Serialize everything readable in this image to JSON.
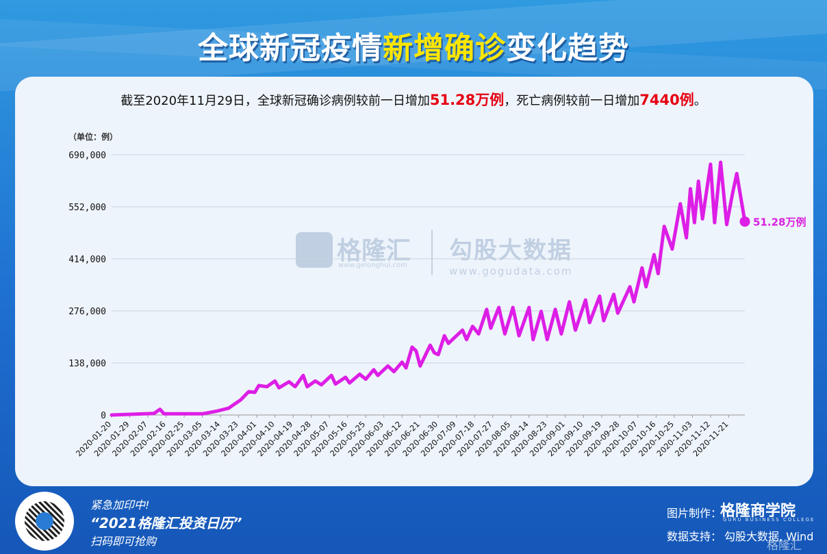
{
  "header": {
    "title_part1": "全球新冠疫情",
    "title_highlight": "新增确诊",
    "title_part2": "变化趋势"
  },
  "summary": {
    "prefix": "截至2020年11月29日，全球新冠确诊病例较前一日增加",
    "new_cases": "51.28万例",
    "middle": "，死亡病例较前一日增加",
    "new_deaths": "7440例",
    "suffix": "。"
  },
  "chart_data": {
    "type": "line",
    "unit_label": "（单位：例）",
    "ylim": [
      0,
      690000
    ],
    "yticks": [
      0,
      138000,
      276000,
      414000,
      552000,
      690000
    ],
    "ytick_labels": [
      "0",
      "138,000",
      "276,000",
      "414,000",
      "552,000",
      "690,000"
    ],
    "xtick_labels": [
      "2020-01-20",
      "2020-01-29",
      "2020-02-07",
      "2020-02-16",
      "2020-02-25",
      "2020-03-05",
      "2020-03-14",
      "2020-03-23",
      "2020-04-01",
      "2020-04-10",
      "2020-04-19",
      "2020-04-28",
      "2020-05-07",
      "2020-05-16",
      "2020-05-25",
      "2020-06-03",
      "2020-06-12",
      "2020-06-21",
      "2020-06-30",
      "2020-07-09",
      "2020-07-18",
      "2020-07-27",
      "2020-08-05",
      "2020-08-14",
      "2020-08-23",
      "2020-09-01",
      "2020-09-10",
      "2020-09-19",
      "2020-09-28",
      "2020-10-07",
      "2020-10-16",
      "2020-10-25",
      "2020-11-03",
      "2020-11-12",
      "2020-11-21"
    ],
    "x_start": "2020-01-20",
    "x_end": "2020-11-29",
    "series_color": "#dd1ee6",
    "end_label": "51.28万例",
    "end_value": 512800,
    "points": [
      [
        "2020-01-20",
        0
      ],
      [
        "2020-02-10",
        4000
      ],
      [
        "2020-02-13",
        15000
      ],
      [
        "2020-02-15",
        3000
      ],
      [
        "2020-03-05",
        3000
      ],
      [
        "2020-03-12",
        10000
      ],
      [
        "2020-03-18",
        18000
      ],
      [
        "2020-03-24",
        40000
      ],
      [
        "2020-03-28",
        62000
      ],
      [
        "2020-03-31",
        60000
      ],
      [
        "2020-04-02",
        78000
      ],
      [
        "2020-04-06",
        75000
      ],
      [
        "2020-04-10",
        90000
      ],
      [
        "2020-04-12",
        72000
      ],
      [
        "2020-04-17",
        88000
      ],
      [
        "2020-04-20",
        75000
      ],
      [
        "2020-04-24",
        105000
      ],
      [
        "2020-04-26",
        75000
      ],
      [
        "2020-04-30",
        90000
      ],
      [
        "2020-05-03",
        80000
      ],
      [
        "2020-05-08",
        105000
      ],
      [
        "2020-05-10",
        82000
      ],
      [
        "2020-05-15",
        100000
      ],
      [
        "2020-05-17",
        85000
      ],
      [
        "2020-05-22",
        108000
      ],
      [
        "2020-05-25",
        95000
      ],
      [
        "2020-05-29",
        120000
      ],
      [
        "2020-05-31",
        105000
      ],
      [
        "2020-06-05",
        130000
      ],
      [
        "2020-06-08",
        115000
      ],
      [
        "2020-06-12",
        140000
      ],
      [
        "2020-06-14",
        125000
      ],
      [
        "2020-06-17",
        180000
      ],
      [
        "2020-06-19",
        170000
      ],
      [
        "2020-06-21",
        130000
      ],
      [
        "2020-06-26",
        185000
      ],
      [
        "2020-06-28",
        165000
      ],
      [
        "2020-06-30",
        160000
      ],
      [
        "2020-07-03",
        210000
      ],
      [
        "2020-07-05",
        190000
      ],
      [
        "2020-07-08",
        205000
      ],
      [
        "2020-07-12",
        225000
      ],
      [
        "2020-07-14",
        200000
      ],
      [
        "2020-07-17",
        235000
      ],
      [
        "2020-07-20",
        215000
      ],
      [
        "2020-07-24",
        280000
      ],
      [
        "2020-07-26",
        230000
      ],
      [
        "2020-07-30",
        285000
      ],
      [
        "2020-08-02",
        215000
      ],
      [
        "2020-08-06",
        285000
      ],
      [
        "2020-08-09",
        210000
      ],
      [
        "2020-08-14",
        285000
      ],
      [
        "2020-08-16",
        200000
      ],
      [
        "2020-08-20",
        275000
      ],
      [
        "2020-08-23",
        200000
      ],
      [
        "2020-08-27",
        280000
      ],
      [
        "2020-08-30",
        215000
      ],
      [
        "2020-09-03",
        300000
      ],
      [
        "2020-09-06",
        225000
      ],
      [
        "2020-09-11",
        305000
      ],
      [
        "2020-09-13",
        245000
      ],
      [
        "2020-09-18",
        315000
      ],
      [
        "2020-09-20",
        250000
      ],
      [
        "2020-09-25",
        320000
      ],
      [
        "2020-09-27",
        270000
      ],
      [
        "2020-10-03",
        340000
      ],
      [
        "2020-10-05",
        300000
      ],
      [
        "2020-10-09",
        390000
      ],
      [
        "2020-10-11",
        340000
      ],
      [
        "2020-10-15",
        425000
      ],
      [
        "2020-10-17",
        375000
      ],
      [
        "2020-10-20",
        500000
      ],
      [
        "2020-10-24",
        440000
      ],
      [
        "2020-10-28",
        560000
      ],
      [
        "2020-10-31",
        470000
      ],
      [
        "2020-11-02",
        600000
      ],
      [
        "2020-11-04",
        510000
      ],
      [
        "2020-11-06",
        620000
      ],
      [
        "2020-11-08",
        520000
      ],
      [
        "2020-11-12",
        665000
      ],
      [
        "2020-11-14",
        510000
      ],
      [
        "2020-11-17",
        670000
      ],
      [
        "2020-11-20",
        505000
      ],
      [
        "2020-11-23",
        590000
      ],
      [
        "2020-11-25",
        640000
      ],
      [
        "2020-11-29",
        512800
      ]
    ]
  },
  "watermark": {
    "brand": "格隆汇",
    "brand_url": "www.gelonghui.com",
    "partner": "勾股大数据",
    "partner_url": "www.gogudata.com"
  },
  "footer": {
    "promo_line1": "紧急加印中!",
    "promo_line2": "“2021格隆汇投资日历”",
    "promo_line3": "扫码即可抢购",
    "made_by_label": "图片制作：",
    "made_by_brand": "格隆商学院",
    "made_by_brand_sub": "GURU BUSINESS COLLEGE",
    "data_label": "数据支持：",
    "data_value": "勾股大数据, Wind",
    "corner_mark": "格隆汇"
  }
}
